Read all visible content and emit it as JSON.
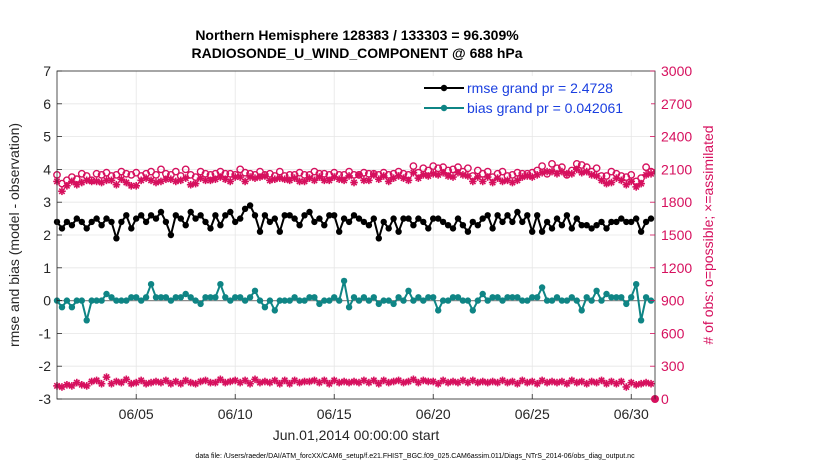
{
  "chart_data": {
    "type": "line",
    "title": "Northern Hemisphere 128383 / 133303 = 96.309%",
    "subtitle": "RADIOSONDE_U_WIND_COMPONENT @ 688 hPa",
    "xlabel": "Jun.01,2014 00:00:00 start",
    "ylabel_left": "rmse and bias (model - observation)",
    "ylabel_right": "# of obs: o=possible; ×=assimilated",
    "footnote": "data file: /Users/raeder/DAI/ATM_forcXX/CAM6_setup/f.e21.FHIST_BGC.f09_025.CAM6assim.011/Diags_NTrS_2014-06/obs_diag_output.nc",
    "xlim": [
      1,
      31.2
    ],
    "ylim_left": [
      -3,
      7
    ],
    "ylim_right": [
      0,
      3000
    ],
    "xtick_values": [
      5,
      10,
      15,
      20,
      25,
      30
    ],
    "xtick_labels": [
      "06/05",
      "06/10",
      "06/15",
      "06/20",
      "06/25",
      "06/30"
    ],
    "ytick_left": [
      "-3",
      "-2",
      "-1",
      "0",
      "1",
      "2",
      "3",
      "4",
      "5",
      "6",
      "7"
    ],
    "ytick_right": [
      "0",
      "300",
      "600",
      "900",
      "1200",
      "1500",
      "1800",
      "2100",
      "2400",
      "2700",
      "3000"
    ],
    "zero_line": 0,
    "legend": [
      {
        "label": "rmse grand pr = 2.4728",
        "color": "#000000"
      },
      {
        "label": "bias grand pr = 0.042061",
        "color": "#0f8585"
      }
    ],
    "colors": {
      "rmse": "#000000",
      "bias": "#0f8585",
      "obs": "#d6105e",
      "legend_text": "#1a3fe0"
    },
    "x": [
      1.0,
      1.25,
      1.5,
      1.75,
      2.0,
      2.25,
      2.5,
      2.75,
      3.0,
      3.25,
      3.5,
      3.75,
      4.0,
      4.25,
      4.5,
      4.75,
      5.0,
      5.25,
      5.5,
      5.75,
      6.0,
      6.25,
      6.5,
      6.75,
      7.0,
      7.25,
      7.5,
      7.75,
      8.0,
      8.25,
      8.5,
      8.75,
      9.0,
      9.25,
      9.5,
      9.75,
      10.0,
      10.25,
      10.5,
      10.75,
      11.0,
      11.25,
      11.5,
      11.75,
      12.0,
      12.25,
      12.5,
      12.75,
      13.0,
      13.25,
      13.5,
      13.75,
      14.0,
      14.25,
      14.5,
      14.75,
      15.0,
      15.25,
      15.5,
      15.75,
      16.0,
      16.25,
      16.5,
      16.75,
      17.0,
      17.25,
      17.5,
      17.75,
      18.0,
      18.25,
      18.5,
      18.75,
      19.0,
      19.25,
      19.5,
      19.75,
      20.0,
      20.25,
      20.5,
      20.75,
      21.0,
      21.25,
      21.5,
      21.75,
      22.0,
      22.25,
      22.5,
      22.75,
      23.0,
      23.25,
      23.5,
      23.75,
      24.0,
      24.25,
      24.5,
      24.75,
      25.0,
      25.25,
      25.5,
      25.75,
      26.0,
      26.25,
      26.5,
      26.75,
      27.0,
      27.25,
      27.5,
      27.75,
      28.0,
      28.25,
      28.5,
      28.75,
      29.0,
      29.25,
      29.5,
      29.75,
      30.0,
      30.25,
      30.5,
      30.75,
      31.0
    ],
    "series": [
      {
        "name": "rmse",
        "axis": "left",
        "values": [
          2.4,
          2.2,
          2.4,
          2.3,
          2.5,
          2.4,
          2.2,
          2.4,
          2.5,
          2.3,
          2.5,
          2.4,
          1.9,
          2.4,
          2.6,
          2.2,
          2.5,
          2.6,
          2.4,
          2.6,
          2.5,
          2.7,
          2.4,
          2.0,
          2.6,
          2.5,
          2.3,
          2.7,
          2.5,
          2.6,
          2.4,
          2.2,
          2.6,
          2.3,
          2.6,
          2.7,
          2.4,
          2.5,
          2.8,
          2.9,
          2.6,
          2.1,
          2.6,
          2.4,
          2.5,
          2.1,
          2.6,
          2.6,
          2.5,
          2.3,
          2.6,
          2.7,
          2.4,
          2.5,
          2.3,
          2.6,
          2.6,
          2.1,
          2.5,
          2.4,
          2.6,
          2.5,
          2.4,
          2.3,
          2.5,
          1.9,
          2.4,
          2.2,
          2.5,
          2.1,
          2.5,
          2.5,
          2.3,
          2.5,
          2.4,
          2.2,
          2.5,
          2.5,
          2.4,
          2.3,
          2.2,
          2.5,
          2.3,
          2.1,
          2.4,
          2.3,
          2.5,
          2.6,
          2.2,
          2.6,
          2.4,
          2.6,
          2.4,
          2.7,
          2.4,
          2.6,
          2.1,
          2.6,
          2.1,
          2.4,
          2.2,
          2.5,
          2.3,
          2.6,
          2.2,
          2.5,
          2.3,
          2.3,
          2.2,
          2.3,
          2.4,
          2.2,
          2.4,
          2.4,
          2.5,
          2.4,
          2.4,
          2.5,
          2.1,
          2.4,
          2.5
        ]
      },
      {
        "name": "bias",
        "axis": "left",
        "values": [
          0.0,
          -0.2,
          0.0,
          -0.2,
          0.0,
          0.0,
          -0.6,
          0.0,
          0.0,
          0.0,
          0.2,
          0.1,
          0.0,
          0.0,
          0.0,
          0.1,
          0.1,
          0.0,
          0.1,
          0.5,
          0.1,
          0.1,
          0.1,
          0.0,
          0.1,
          0.1,
          0.2,
          0.1,
          0.0,
          -0.1,
          0.1,
          0.1,
          0.1,
          0.5,
          0.1,
          0.0,
          0.1,
          0.1,
          0.0,
          0.1,
          0.3,
          0.0,
          -0.2,
          0.0,
          -0.3,
          0.0,
          0.0,
          0.0,
          0.1,
          0.0,
          0.0,
          0.1,
          0.1,
          -0.1,
          0.0,
          0.0,
          0.1,
          0.0,
          0.6,
          -0.2,
          0.1,
          0.0,
          0.1,
          0.0,
          0.1,
          -0.1,
          0.0,
          0.0,
          -0.1,
          0.1,
          0.0,
          0.3,
          0.0,
          0.1,
          0.0,
          0.1,
          0.1,
          -0.3,
          0.0,
          0.0,
          0.1,
          0.1,
          0.0,
          0.0,
          -0.3,
          0.0,
          0.2,
          0.0,
          0.1,
          0.1,
          0.0,
          0.1,
          0.1,
          0.1,
          0.0,
          0.0,
          0.1,
          0.1,
          0.4,
          0.0,
          0.0,
          0.1,
          0.0,
          0.0,
          0.1,
          0.0,
          -0.3,
          0.1,
          0.0,
          0.3,
          0.0,
          0.2,
          0.1,
          0.1,
          0.1,
          -0.1,
          0.1,
          0.5,
          -0.6,
          0.1,
          0.0
        ]
      },
      {
        "name": "obs_possible",
        "axis": "right",
        "marker": "circle",
        "values": [
          2050,
          1970,
          2000,
          2030,
          2010,
          2060,
          2040,
          2000,
          2060,
          2050,
          2070,
          2040,
          2050,
          2080,
          2060,
          2050,
          2070,
          2040,
          2060,
          2080,
          2050,
          2100,
          2060,
          2050,
          2080,
          2040,
          2100,
          2050,
          2030,
          2080,
          2060,
          2050,
          2060,
          2080,
          2060,
          2060,
          2050,
          2100,
          2070,
          2060,
          2050,
          2080,
          2050,
          2060,
          2040,
          2080,
          2040,
          2050,
          2050,
          2070,
          2050,
          2050,
          2080,
          2060,
          2060,
          2050,
          2070,
          2050,
          2050,
          2080,
          2050,
          2050,
          2070,
          2060,
          2060,
          2050,
          2070,
          2050,
          2060,
          2080,
          2060,
          2050,
          2130,
          2070,
          2110,
          2090,
          2130,
          2110,
          2120,
          2090,
          2100,
          2120,
          2080,
          2110,
          2040,
          2090,
          2060,
          2080,
          2030,
          2060,
          2080,
          2040,
          2050,
          2070,
          2060,
          2060,
          2070,
          2090,
          2130,
          2060,
          2150,
          2110,
          2120,
          2050,
          2090,
          2150,
          2140,
          2120,
          2080,
          2110,
          2040,
          2040,
          2080,
          2060,
          2040,
          2030,
          2050,
          1990,
          2020,
          2120,
          2080
        ]
      },
      {
        "name": "obs_assimilated",
        "axis": "right",
        "marker": "asterisk",
        "values": [
          1990,
          1900,
          1950,
          1990,
          1960,
          1980,
          2000,
          1990,
          1990,
          1980,
          2000,
          2000,
          1960,
          2010,
          1980,
          1950,
          1950,
          2000,
          2020,
          2000,
          1980,
          1990,
          2010,
          2010,
          1990,
          2000,
          2020,
          1960,
          1970,
          2020,
          2000,
          2000,
          2010,
          2030,
          2010,
          1990,
          2030,
          2030,
          1990,
          2030,
          2020,
          2030,
          2040,
          2000,
          2010,
          2020,
          2010,
          2000,
          2020,
          1990,
          1990,
          2020,
          2000,
          2030,
          2000,
          2000,
          2030,
          2010,
          2000,
          2040,
          1980,
          2050,
          2000,
          2000,
          2050,
          2010,
          2040,
          1990,
          2020,
          2040,
          2020,
          2000,
          2070,
          2020,
          2050,
          2040,
          2060,
          2050,
          2070,
          2040,
          2030,
          2070,
          2050,
          2040,
          1990,
          2030,
          1990,
          2030,
          1980,
          2020,
          1990,
          2000,
          1980,
          2000,
          2030,
          2040,
          2030,
          2050,
          2070,
          2080,
          2080,
          2060,
          2080,
          2060,
          2060,
          2100,
          2070,
          2080,
          2050,
          2040,
          2000,
          1970,
          1980,
          2020,
          2000,
          1960,
          1990,
          1940,
          1970,
          2050,
          2060
        ]
      },
      {
        "name": "obs_low",
        "axis": "right",
        "marker": "asterisk",
        "values": [
          120,
          110,
          130,
          120,
          150,
          130,
          120,
          160,
          170,
          140,
          200,
          140,
          160,
          150,
          180,
          140,
          150,
          170,
          140,
          150,
          160,
          150,
          170,
          140,
          160,
          140,
          170,
          150,
          140,
          160,
          170,
          150,
          150,
          180,
          150,
          160,
          170,
          150,
          170,
          140,
          180,
          150,
          160,
          150,
          170,
          140,
          170,
          140,
          170,
          150,
          160,
          160,
          170,
          150,
          170,
          140,
          170,
          150,
          160,
          150,
          160,
          150,
          170,
          150,
          170,
          140,
          170,
          150,
          160,
          170,
          150,
          160,
          180,
          150,
          170,
          160,
          160,
          140,
          170,
          150,
          160,
          150,
          170,
          150,
          170,
          150,
          160,
          150,
          160,
          150,
          170,
          150,
          160,
          140,
          170,
          150,
          160,
          140,
          170,
          150,
          160,
          150,
          160,
          140,
          170,
          150,
          160,
          140,
          160,
          150,
          170,
          140,
          160,
          140,
          160,
          110,
          150,
          130,
          140,
          150,
          140
        ]
      }
    ]
  }
}
